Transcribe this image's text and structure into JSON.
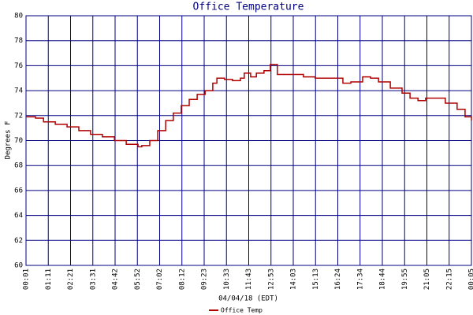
{
  "chart_data": {
    "type": "line",
    "title": "Office Temperature",
    "ylabel": "Degrees F",
    "xlabel": "04/04/18 (EDT)",
    "xlim": [
      0,
      1400
    ],
    "ylim": [
      60,
      80
    ],
    "xticks": [
      {
        "value": 0,
        "label": "00:01"
      },
      {
        "value": 70,
        "label": "01:11"
      },
      {
        "value": 140,
        "label": "02:21"
      },
      {
        "value": 210,
        "label": "03:31"
      },
      {
        "value": 280,
        "label": "04:42"
      },
      {
        "value": 350,
        "label": "05:52"
      },
      {
        "value": 420,
        "label": "07:02"
      },
      {
        "value": 490,
        "label": "08:12"
      },
      {
        "value": 560,
        "label": "09:23"
      },
      {
        "value": 630,
        "label": "10:33"
      },
      {
        "value": 700,
        "label": "11:43"
      },
      {
        "value": 770,
        "label": "12:53"
      },
      {
        "value": 840,
        "label": "14:03"
      },
      {
        "value": 910,
        "label": "15:13"
      },
      {
        "value": 980,
        "label": "16:24"
      },
      {
        "value": 1050,
        "label": "17:34"
      },
      {
        "value": 1120,
        "label": "18:44"
      },
      {
        "value": 1190,
        "label": "19:55"
      },
      {
        "value": 1260,
        "label": "21:05"
      },
      {
        "value": 1330,
        "label": "22:15"
      },
      {
        "value": 1400,
        "label": "00:05"
      }
    ],
    "yticks": [
      60,
      62,
      64,
      66,
      68,
      70,
      72,
      74,
      76,
      78,
      80
    ],
    "grid": true,
    "legend": "bottom",
    "series": [
      {
        "name": "Office Temp",
        "color": "#b00000",
        "x": [
          0,
          30,
          55,
          92,
          129,
          166,
          203,
          240,
          278,
          315,
          352,
          364,
          389,
          414,
          439,
          463,
          488,
          513,
          538,
          563,
          587,
          600,
          624,
          649,
          674,
          686,
          706,
          724,
          748,
          768,
          790,
          835,
          872,
          909,
          971,
          996,
          1021,
          1058,
          1083,
          1108,
          1145,
          1182,
          1207,
          1232,
          1256,
          1294,
          1318,
          1355,
          1380,
          1400
        ],
        "values": [
          71.9,
          71.8,
          71.5,
          71.3,
          71.1,
          70.8,
          70.5,
          70.3,
          70.0,
          69.7,
          69.5,
          69.6,
          70.0,
          70.8,
          71.6,
          72.2,
          72.8,
          73.3,
          73.7,
          74.0,
          74.6,
          75.0,
          74.9,
          74.8,
          75.0,
          75.4,
          75.1,
          75.4,
          75.6,
          76.1,
          75.3,
          75.3,
          75.1,
          75.0,
          75.0,
          74.6,
          74.7,
          75.1,
          75.0,
          74.7,
          74.2,
          73.8,
          73.4,
          73.2,
          73.4,
          73.4,
          73.0,
          72.5,
          71.9,
          71.6
        ]
      }
    ]
  }
}
